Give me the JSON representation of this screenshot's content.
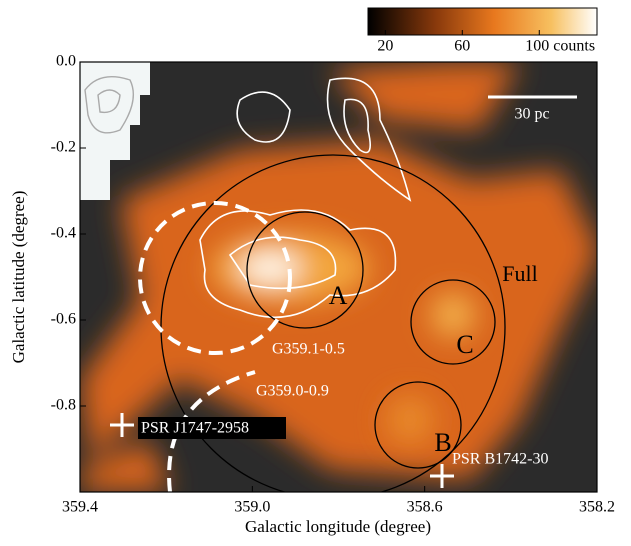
{
  "chart_data": {
    "type": "image",
    "xlabel": "Galactic longitude (degree)",
    "ylabel": "Galactic latitude (degree)",
    "xlim": [
      359.4,
      358.2
    ],
    "xticks": [
      359.4,
      {
        "value": 359,
        "label": "359.0"
      },
      358.6,
      358.2
    ],
    "ylim": [
      -1.0,
      0
    ],
    "yticks": [
      {
        "value": 0,
        "label": "0.0"
      },
      -0.2,
      -0.4,
      -0.6,
      -0.8
    ],
    "colorbar": {
      "lim": [
        11,
        130
      ],
      "ticks": [
        20,
        60,
        {
          "value": 100,
          "label": "100 counts"
        }
      ]
    },
    "scale_bar": "30 pc",
    "regions": [
      "A",
      "B",
      "C",
      "Full"
    ],
    "remnants": [
      "G359.1-0.5",
      "G359.0-0.9"
    ],
    "pulsars": [
      "PSR J1747-2958",
      "PSR B1742-30"
    ]
  }
}
